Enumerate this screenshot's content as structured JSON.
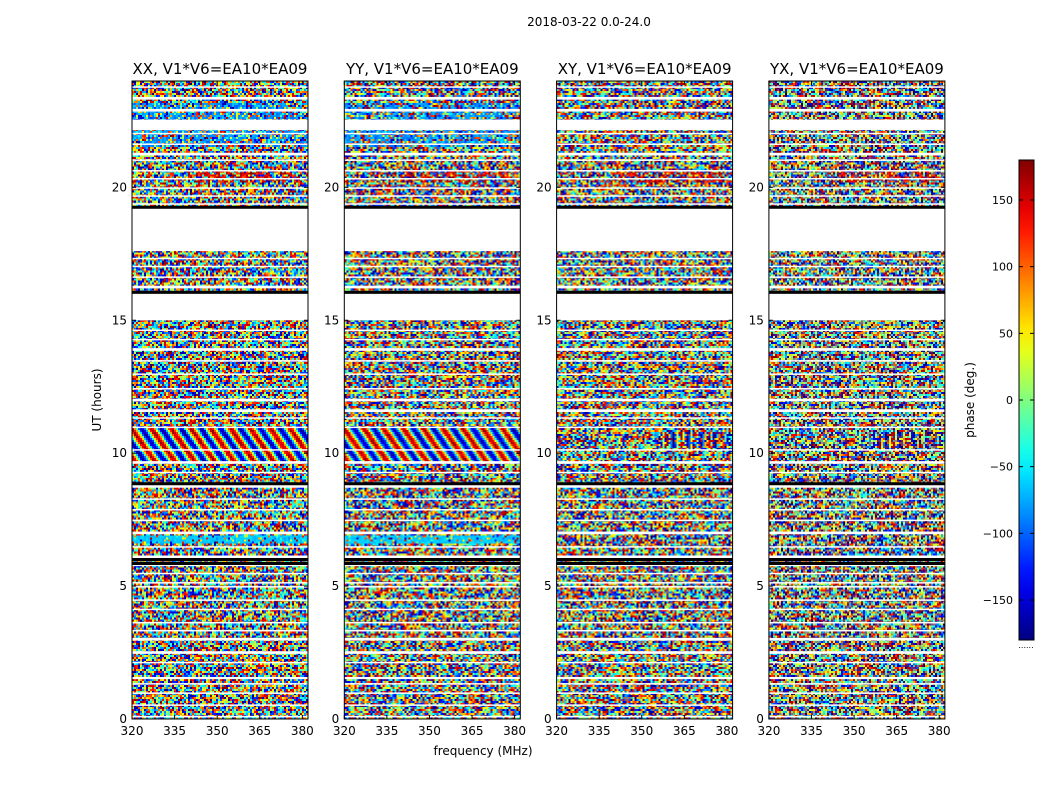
{
  "chart_data": {
    "type": "heatmap",
    "suptitle": "2018-03-22 0.0-24.0",
    "xlabel": "frequency (MHz)",
    "ylabel": "UT (hours)",
    "xlim": [
      320,
      382
    ],
    "ylim": [
      0,
      24
    ],
    "xticks": [
      320,
      335,
      350,
      365,
      380
    ],
    "yticks": [
      0,
      5,
      10,
      15,
      20
    ],
    "panels": [
      {
        "title": "XX, V1*V6=EA10*EA09",
        "pattern": "strong-fringes"
      },
      {
        "title": "YY, V1*V6=EA10*EA09",
        "pattern": "strong-fringes"
      },
      {
        "title": "XY, V1*V6=EA10*EA09",
        "pattern": "noise"
      },
      {
        "title": "YX, V1*V6=EA10*EA09",
        "pattern": "noise"
      }
    ],
    "flagged_ut_ranges": [
      [
        0.06,
        0.12
      ],
      [
        0.5,
        0.55
      ],
      [
        0.95,
        1.0
      ],
      [
        1.3,
        1.35
      ],
      [
        1.5,
        1.58
      ],
      [
        2.1,
        2.15
      ],
      [
        2.45,
        2.55
      ],
      [
        2.95,
        3.05
      ],
      [
        3.3,
        3.35
      ],
      [
        3.6,
        3.65
      ],
      [
        4.1,
        4.15
      ],
      [
        4.45,
        4.5
      ],
      [
        4.95,
        5.0
      ],
      [
        5.1,
        5.15
      ],
      [
        5.45,
        5.5
      ],
      [
        5.75,
        5.85
      ],
      [
        6.05,
        6.15
      ],
      [
        6.45,
        6.5
      ],
      [
        6.95,
        7.05
      ],
      [
        7.45,
        7.5
      ],
      [
        7.85,
        7.9
      ],
      [
        8.25,
        8.3
      ],
      [
        8.7,
        8.85
      ],
      [
        9.25,
        9.3
      ],
      [
        9.6,
        9.7
      ],
      [
        10.1,
        10.15
      ],
      [
        10.95,
        11.0
      ],
      [
        11.3,
        11.35
      ],
      [
        11.55,
        11.65
      ],
      [
        11.95,
        12.05
      ],
      [
        12.4,
        12.45
      ],
      [
        12.95,
        13.0
      ],
      [
        13.45,
        13.5
      ],
      [
        13.85,
        13.95
      ],
      [
        14.25,
        14.3
      ],
      [
        14.6,
        14.65
      ],
      [
        15.0,
        16.05
      ],
      [
        16.2,
        16.3
      ],
      [
        16.6,
        16.65
      ],
      [
        17.0,
        17.05
      ],
      [
        17.3,
        17.35
      ],
      [
        17.6,
        19.25
      ],
      [
        19.35,
        19.4
      ],
      [
        19.65,
        19.7
      ],
      [
        19.95,
        20.0
      ],
      [
        20.3,
        20.35
      ],
      [
        20.6,
        20.65
      ],
      [
        21.0,
        21.05
      ],
      [
        21.2,
        21.3
      ],
      [
        21.6,
        21.65
      ],
      [
        22.0,
        22.05
      ],
      [
        22.15,
        22.55
      ],
      [
        22.85,
        22.95
      ],
      [
        23.3,
        23.4
      ],
      [
        23.75,
        23.8
      ]
    ],
    "colorbar": {
      "label": "phase (deg.)",
      "range": [
        -180,
        180
      ],
      "ticks": [
        -150,
        -100,
        -50,
        0,
        50,
        100,
        150
      ],
      "tick_labels": [
        "−150",
        "−100",
        "−50",
        "0",
        "50",
        "100",
        "150"
      ],
      "colormap": "jet",
      "footnote": "......"
    }
  }
}
